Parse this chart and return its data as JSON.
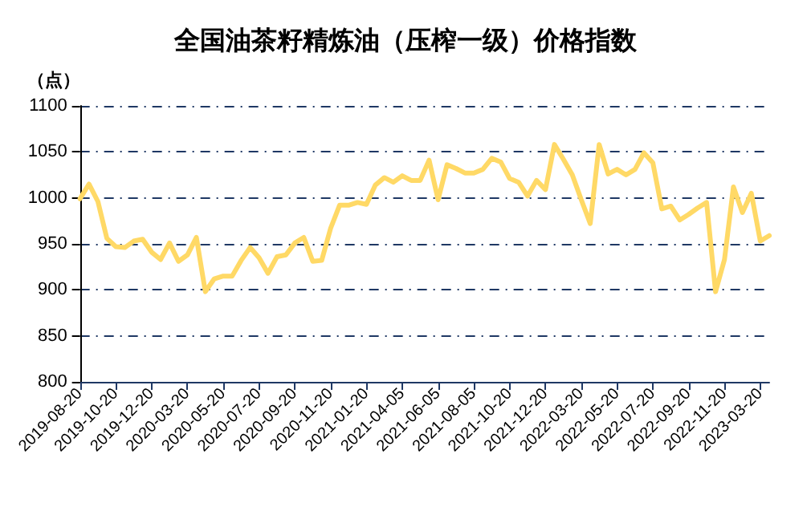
{
  "chart_data": {
    "type": "line",
    "title": "全国油茶籽精炼油（压榨一级）价格指数",
    "ylabel": "（点）",
    "categories": [
      "2019-08-20",
      null,
      null,
      null,
      "2019-10-20",
      null,
      null,
      null,
      "2019-12-20",
      null,
      null,
      null,
      "2020-03-20",
      null,
      null,
      null,
      "2020-05-20",
      null,
      null,
      null,
      "2020-07-20",
      null,
      null,
      null,
      "2020-09-20",
      null,
      null,
      null,
      "2020-11-20",
      null,
      null,
      null,
      "2021-01-20",
      null,
      null,
      null,
      "2021-04-05",
      null,
      null,
      null,
      "2021-06-05",
      null,
      null,
      null,
      "2021-08-05",
      null,
      null,
      null,
      "2021-10-20",
      null,
      null,
      null,
      "2021-12-20",
      null,
      null,
      null,
      "2022-03-20",
      null,
      null,
      null,
      "2022-05-20",
      null,
      null,
      null,
      "2022-07-20",
      null,
      null,
      null,
      "2022-09-20",
      null,
      null,
      null,
      "2022-11-20",
      null,
      null,
      null,
      "2023-03-20",
      null
    ],
    "series": [
      {
        "color": "#ffd966",
        "values": [
          999,
          1015,
          996,
          956,
          947,
          946,
          953,
          955,
          941,
          933,
          951,
          931,
          938,
          957,
          898,
          912,
          915,
          915,
          932,
          946,
          935,
          918,
          936,
          938,
          951,
          957,
          931,
          932,
          967,
          992,
          992,
          995,
          993,
          1014,
          1022,
          1017,
          1024,
          1019,
          1019,
          1041,
          998,
          1036,
          1032,
          1027,
          1027,
          1031,
          1043,
          1039,
          1021,
          1017,
          1002,
          1019,
          1009,
          1058,
          1042,
          1025,
          998,
          972,
          1058,
          1026,
          1031,
          1025,
          1031,
          1049,
          1038,
          988,
          991,
          976,
          982,
          989,
          995,
          898,
          933,
          1012,
          984,
          1005,
          953,
          959
        ]
      }
    ],
    "ylim": [
      800,
      1100
    ],
    "yticks": [
      800,
      850,
      900,
      950,
      1000,
      1050,
      1100
    ],
    "grid": "y",
    "marker": "none",
    "line_style": "solid"
  }
}
